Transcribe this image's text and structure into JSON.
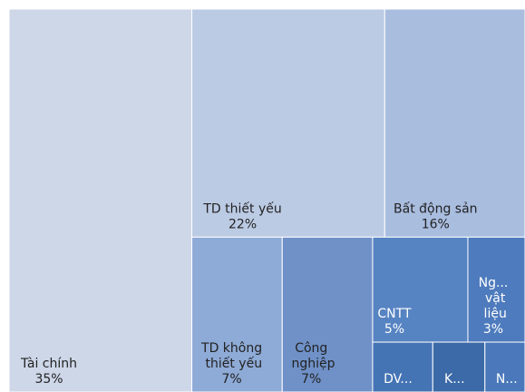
{
  "chart_data": {
    "type": "treemap",
    "categories": [
      "Tài chính",
      "TD thiết yếu",
      "Bất động sản",
      "TD không thiết yếu",
      "Công nghiệp",
      "CNTT",
      "Ng... vật liệu",
      "DV...",
      "K...",
      "N..."
    ],
    "values": [
      35,
      22,
      16,
      7,
      7,
      5,
      3,
      1.5,
      1.3,
      1
    ],
    "value_labels": [
      "35%",
      "22%",
      "16%",
      "7%",
      "7%",
      "5%",
      "3%",
      null,
      null,
      null
    ],
    "colors": [
      "#cdd7e8",
      "#bccbe4",
      "#a9bddf",
      "#8eaad6",
      "#6f91c8",
      "#5683c2",
      "#4e7bbd",
      "#4574b5",
      "#3c69a7",
      "#4a78ba"
    ]
  }
}
